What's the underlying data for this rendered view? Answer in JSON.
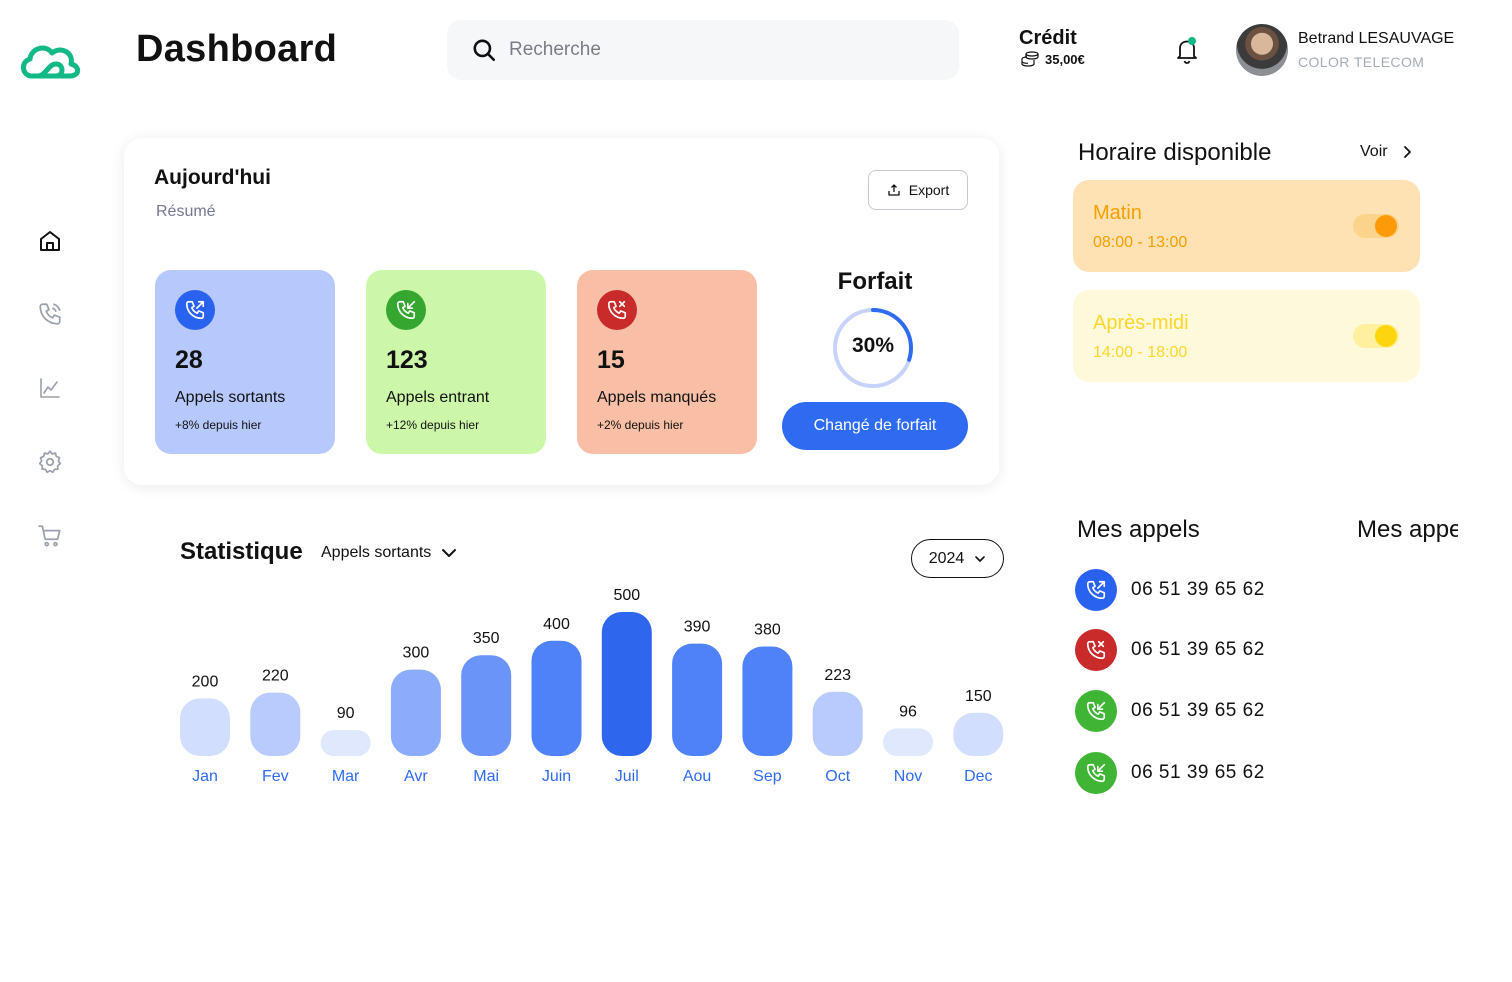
{
  "header": {
    "title": "Dashboard",
    "search_placeholder": "Recherche",
    "credit_label": "Crédit",
    "credit_value": "35,00€",
    "user_name": "Betrand LESAUVAGE",
    "user_company": "COLOR TELECOM",
    "notification_dot_color": "#12b886"
  },
  "sidebar": {
    "items": [
      {
        "icon": "home-icon"
      },
      {
        "icon": "phone-icon"
      },
      {
        "icon": "chart-icon"
      },
      {
        "icon": "settings-icon"
      },
      {
        "icon": "cart-icon"
      }
    ]
  },
  "today": {
    "title": "Aujourd'hui",
    "subtitle": "Résumé",
    "export_label": "Export",
    "cards": [
      {
        "value": "28",
        "label": "Appels sortants",
        "change": "+8% depuis hier",
        "bg": "#b7c8fd",
        "icon_bg": "#2a62f0",
        "icon": "outgoing-call-icon"
      },
      {
        "value": "123",
        "label": "Appels entrant",
        "change": "+12% depuis hier",
        "bg": "#cdf7a8",
        "icon_bg": "#35a630",
        "icon": "incoming-call-icon"
      },
      {
        "value": "15",
        "label": "Appels manqués",
        "change": "+2% depuis hier",
        "bg": "#f8bfa6",
        "icon_bg": "#c92a2a",
        "icon": "missed-call-icon"
      }
    ],
    "forfait": {
      "title": "Forfait",
      "percent_label": "30%",
      "percent": 30,
      "button_label": "Changé de forfait"
    }
  },
  "horaire": {
    "title": "Horaire disponible",
    "voir_label": "Voir",
    "slots": [
      {
        "name": "Matin",
        "time": "08:00 - 13:00",
        "bg": "#fee2b3",
        "text_color": "#f59f00",
        "track": "#fcd38a",
        "knob": "#fd9a0a",
        "on": true
      },
      {
        "name": "Après-midi",
        "time": "14:00 - 18:00",
        "bg": "#fff9db",
        "text_color": "#fcd62a",
        "track": "#fff0a0",
        "knob": "#fcd50f",
        "on": true
      }
    ]
  },
  "appels": {
    "title": "Mes appels",
    "title_2": "Mes appels",
    "calls": [
      {
        "number": "06 51 39 65 62",
        "type": "outgoing",
        "color": "#2a62f0",
        "icon": "outgoing-call-icon"
      },
      {
        "number": "06 51 39 65 62",
        "type": "missed",
        "color": "#c92a2a",
        "icon": "missed-call-icon"
      },
      {
        "number": "06 51 39 65 62",
        "type": "incoming",
        "color": "#40b535",
        "icon": "incoming-call-icon"
      },
      {
        "number": "06 51 39 65 62",
        "type": "incoming",
        "color": "#40b535",
        "icon": "incoming-call-icon"
      }
    ]
  },
  "statistique": {
    "title": "Statistique",
    "selected_type": "Appels sortants",
    "year": "2024"
  },
  "chart_data": {
    "type": "bar",
    "categories": [
      "Jan",
      "Fev",
      "Mar",
      "Avr",
      "Mai",
      "Juin",
      "Juil",
      "Aou",
      "Sep",
      "Oct",
      "Nov",
      "Dec"
    ],
    "values": [
      200,
      220,
      90,
      300,
      350,
      400,
      500,
      390,
      380,
      223,
      96,
      150
    ],
    "ylim": [
      0,
      500
    ],
    "grid": false,
    "label_color": "#2f6bf1"
  }
}
